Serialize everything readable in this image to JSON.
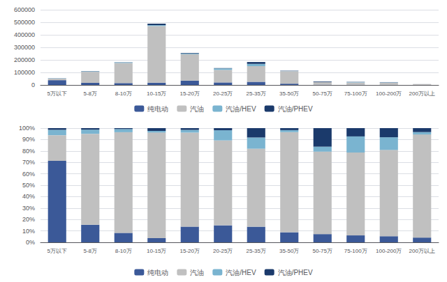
{
  "chart_data": [
    {
      "type": "bar",
      "stacked": true,
      "grid": true,
      "legend": "bottom",
      "categories": [
        "5万以下",
        "5-8万",
        "8-10万",
        "10-15万",
        "15-20万",
        "20-25万",
        "25-35万",
        "35-50万",
        "50-75万",
        "75-100万",
        "100-200万",
        "200万以上"
      ],
      "series": [
        {
          "name": "纯电动",
          "color": "#3B5998",
          "values": [
            38000,
            17000,
            15000,
            18000,
            35000,
            20000,
            25000,
            10000,
            2000,
            1500,
            1200,
            300
          ]
        },
        {
          "name": "汽油",
          "color": "#C0C0C0",
          "values": [
            12000,
            88000,
            160000,
            452000,
            210000,
            100000,
            125000,
            100000,
            20000,
            18000,
            17000,
            6500
          ]
        },
        {
          "name": "汽油/HEV",
          "color": "#7AB4D0",
          "values": [
            2500,
            4000,
            5000,
            7000,
            6000,
            12000,
            18000,
            2000,
            1200,
            3500,
            2500,
            150
          ]
        },
        {
          "name": "汽油/PHEV",
          "color": "#1B3A6B",
          "values": [
            800,
            1500,
            1500,
            12000,
            4000,
            2500,
            15000,
            2000,
            4500,
            1800,
            1800,
            250
          ]
        }
      ],
      "ylim": [
        0,
        600000
      ],
      "yticks": [
        0,
        100000,
        200000,
        300000,
        400000,
        500000,
        600000
      ]
    },
    {
      "type": "bar",
      "stacked": true,
      "grid": true,
      "legend": "bottom",
      "categories": [
        "5万以下",
        "5-8万",
        "8-10万",
        "10-15万",
        "15-20万",
        "20-25万",
        "25-35万",
        "35-50万",
        "50-75万",
        "75-100万",
        "100-200万",
        "200万以上"
      ],
      "series": [
        {
          "name": "纯电动",
          "color": "#3B5998",
          "values": [
            71.2946,
            15.3846,
            8.2645,
            3.681,
            13.7255,
            14.8699,
            13.6612,
            8.7719,
            7.2202,
            6.0484,
            5.3333,
            4.1667
          ]
        },
        {
          "name": "汽油",
          "color": "#C0C0C0",
          "values": [
            22.5141,
            79.638,
            88.1543,
            92.4335,
            82.3529,
            74.3494,
            68.306,
            87.7193,
            72.2022,
            72.5806,
            75.5556,
            90.2778
          ]
        },
        {
          "name": "汽油/HEV",
          "color": "#7AB4D0",
          "values": [
            4.6904,
            3.6199,
            2.7548,
            1.4315,
            2.3529,
            8.9219,
            9.8361,
            1.7544,
            4.3321,
            14.1129,
            11.1111,
            2.0833
          ]
        },
        {
          "name": "汽油/PHEV",
          "color": "#1B3A6B",
          "values": [
            1.5009,
            1.3575,
            0.8264,
            2.454,
            1.5686,
            1.8587,
            8.1967,
            1.7544,
            16.2455,
            7.2581,
            8,
            3.4722
          ]
        }
      ],
      "ylim": [
        0,
        100
      ],
      "yticks": [
        {
          "value": 0,
          "label": "0%"
        },
        {
          "value": 10,
          "label": "10%"
        },
        {
          "value": 20,
          "label": "20%"
        },
        {
          "value": 30,
          "label": "30%"
        },
        {
          "value": 40,
          "label": "40%"
        },
        {
          "value": 50,
          "label": "50%"
        },
        {
          "value": 60,
          "label": "60%"
        },
        {
          "value": 70,
          "label": "70%"
        },
        {
          "value": 80,
          "label": "80%"
        },
        {
          "value": 90,
          "label": "90%"
        },
        {
          "value": 100,
          "label": "100%"
        }
      ]
    }
  ]
}
